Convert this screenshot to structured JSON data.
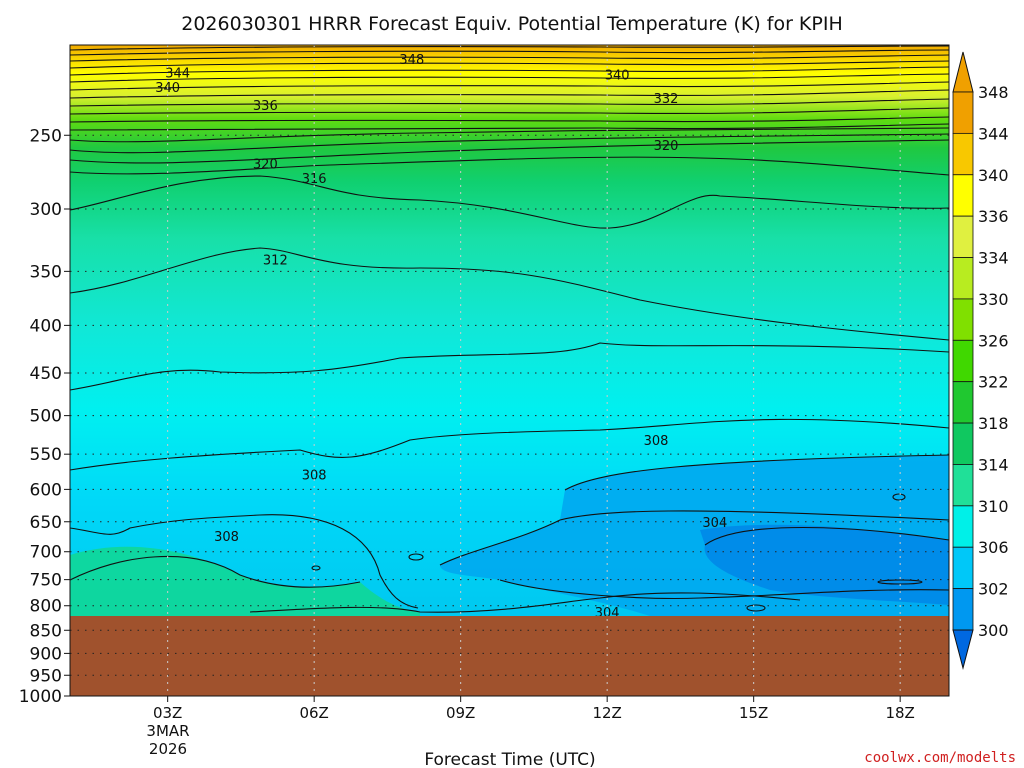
{
  "chart_data": {
    "type": "contour",
    "title": "2026030301 HRRR Forecast Equiv. Potential Temperature (K) for KPIH",
    "xlabel": "Forecast Time (UTC)",
    "ylabel": "",
    "credit": "coolwx.com/modelts",
    "x_ticks": [
      "03Z",
      "06Z",
      "09Z",
      "12Z",
      "15Z",
      "18Z"
    ],
    "x_subtitle": [
      "3MAR",
      "2026"
    ],
    "y_ticks": [
      250,
      300,
      350,
      400,
      450,
      500,
      550,
      600,
      650,
      700,
      750,
      800,
      850,
      900,
      950,
      1000
    ],
    "y_scale": "log-pressure",
    "ylim": [
      200,
      1000
    ],
    "surface_pressure_hPa": 865,
    "grid": true,
    "colorbar": {
      "labels": [
        348,
        344,
        340,
        336,
        334,
        330,
        326,
        322,
        318,
        314,
        310,
        306,
        302,
        300
      ],
      "colors": [
        "#f0a000",
        "#f8c800",
        "#ffff00",
        "#e0f040",
        "#b8ec20",
        "#80e000",
        "#40d800",
        "#20c830",
        "#10c860",
        "#20e098",
        "#00f0e8",
        "#00c8f8",
        "#0098f0",
        "#0068e0"
      ]
    },
    "contour_labels": [
      {
        "value": "348",
        "x": "08Z",
        "p": 207
      },
      {
        "value": "344",
        "x": "03Z",
        "p": 214
      },
      {
        "value": "340",
        "x": "03Z",
        "p": 222
      },
      {
        "value": "340",
        "x": "12Z",
        "p": 215
      },
      {
        "value": "336",
        "x": "05Z",
        "p": 232
      },
      {
        "value": "332",
        "x": "13Z",
        "p": 228
      },
      {
        "value": "320",
        "x": "05Z",
        "p": 268
      },
      {
        "value": "320",
        "x": "13Z",
        "p": 256
      },
      {
        "value": "316",
        "x": "06Z",
        "p": 278
      },
      {
        "value": "312",
        "x": "05Z",
        "p": 340
      },
      {
        "value": "308",
        "x": "06Z",
        "p": 578
      },
      {
        "value": "308",
        "x": "04Z",
        "p": 673
      },
      {
        "value": "308",
        "x": "13Z",
        "p": 531
      },
      {
        "value": "304",
        "x": "14Z",
        "p": 650
      },
      {
        "value": "304",
        "x": "12Z",
        "p": 812
      }
    ]
  }
}
